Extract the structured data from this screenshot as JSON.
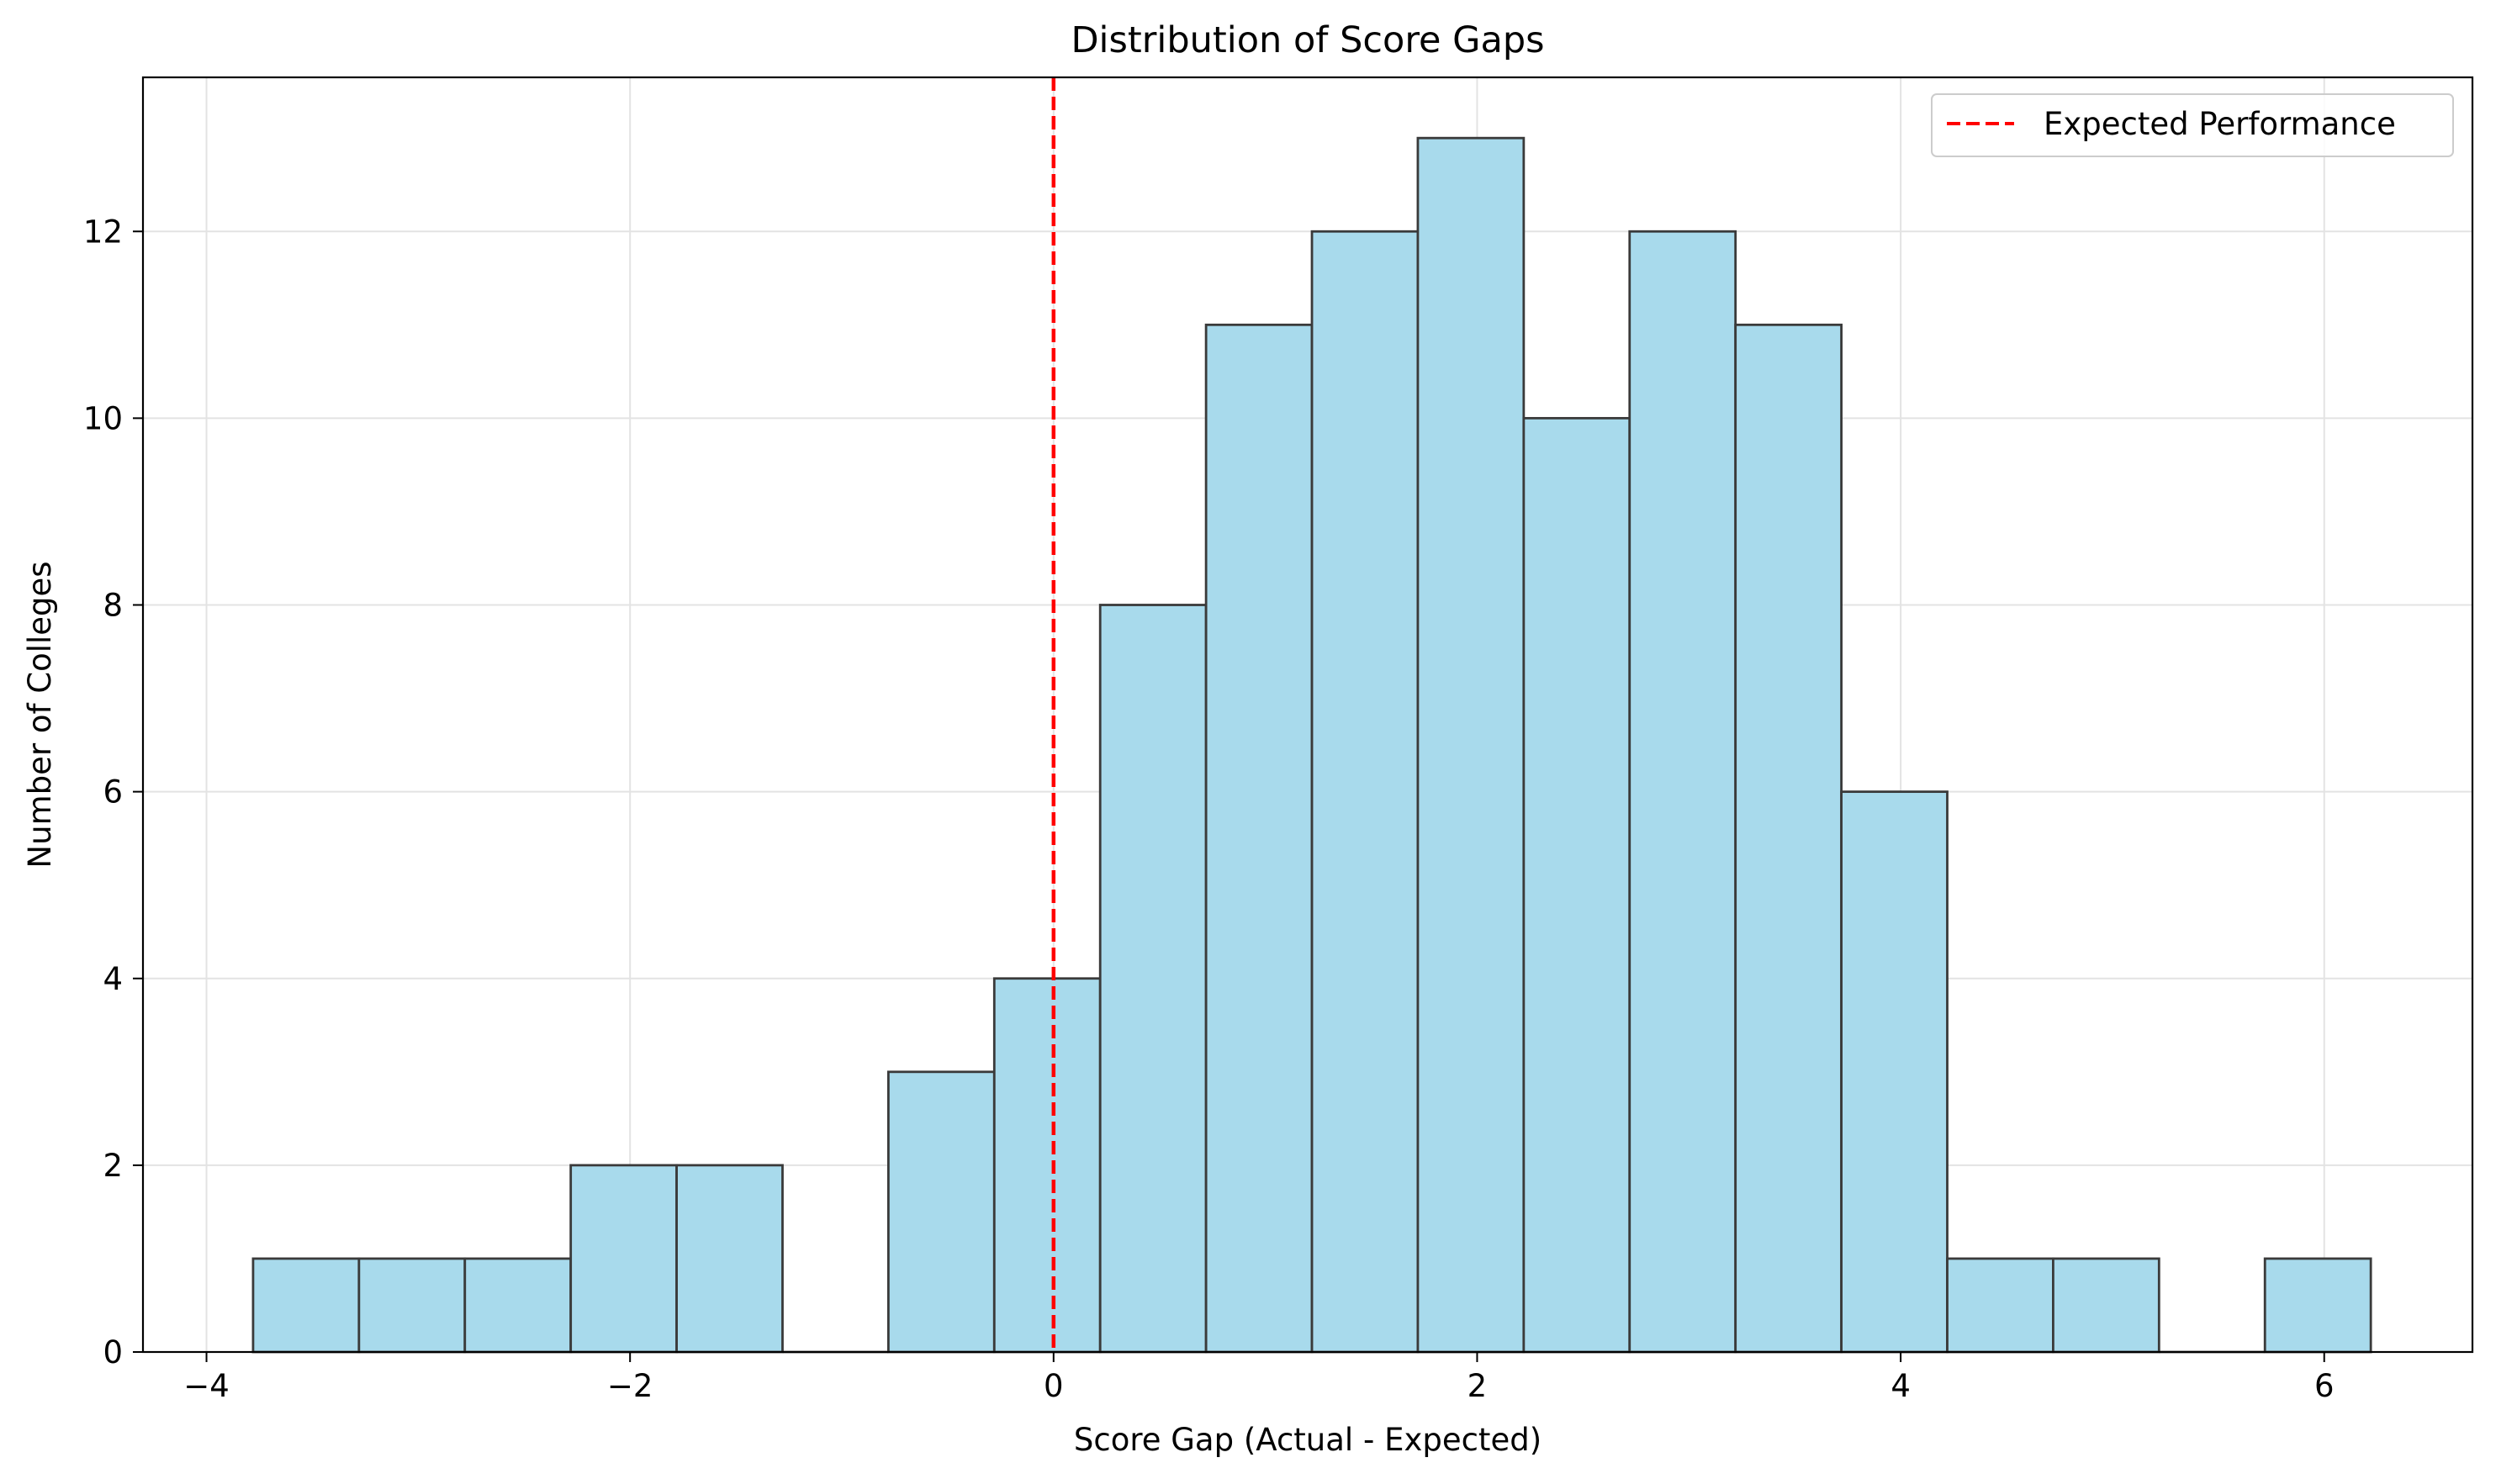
{
  "chart_data": {
    "type": "histogram",
    "title": "Distribution of Score Gaps",
    "xlabel": "Score Gap (Actual - Expected)",
    "ylabel": "Number of Colleges",
    "xlim": [
      -4.3,
      6.7
    ],
    "ylim": [
      0,
      13.65
    ],
    "xticks": [
      -4,
      -2,
      0,
      2,
      4,
      6
    ],
    "xtick_labels": [
      "−4",
      "−2",
      "0",
      "2",
      "4",
      "6"
    ],
    "yticks": [
      0,
      2,
      4,
      6,
      8,
      10,
      12
    ],
    "ytick_labels": [
      "0",
      "2",
      "4",
      "6",
      "8",
      "10",
      "12"
    ],
    "grid": true,
    "bin_edges": [
      -3.78,
      -3.28,
      -2.78,
      -2.28,
      -1.78,
      -1.28,
      -0.78,
      -0.28,
      0.22,
      0.72,
      1.22,
      1.72,
      2.22,
      2.72,
      3.22,
      3.72,
      4.22,
      4.72,
      5.22,
      5.72,
      6.22
    ],
    "counts": [
      1,
      1,
      1,
      2,
      2,
      0,
      3,
      4,
      8,
      11,
      12,
      13,
      10,
      12,
      11,
      6,
      1,
      1,
      0,
      1
    ],
    "bar_color": "#a8daec",
    "bar_edge_color": "#3a3a3a",
    "reference_line": {
      "x": 0,
      "label": "Expected Performance",
      "color": "#ff0000",
      "style": "dashed"
    },
    "legend": {
      "position": "top-right",
      "entries": [
        "Expected Performance"
      ]
    }
  }
}
